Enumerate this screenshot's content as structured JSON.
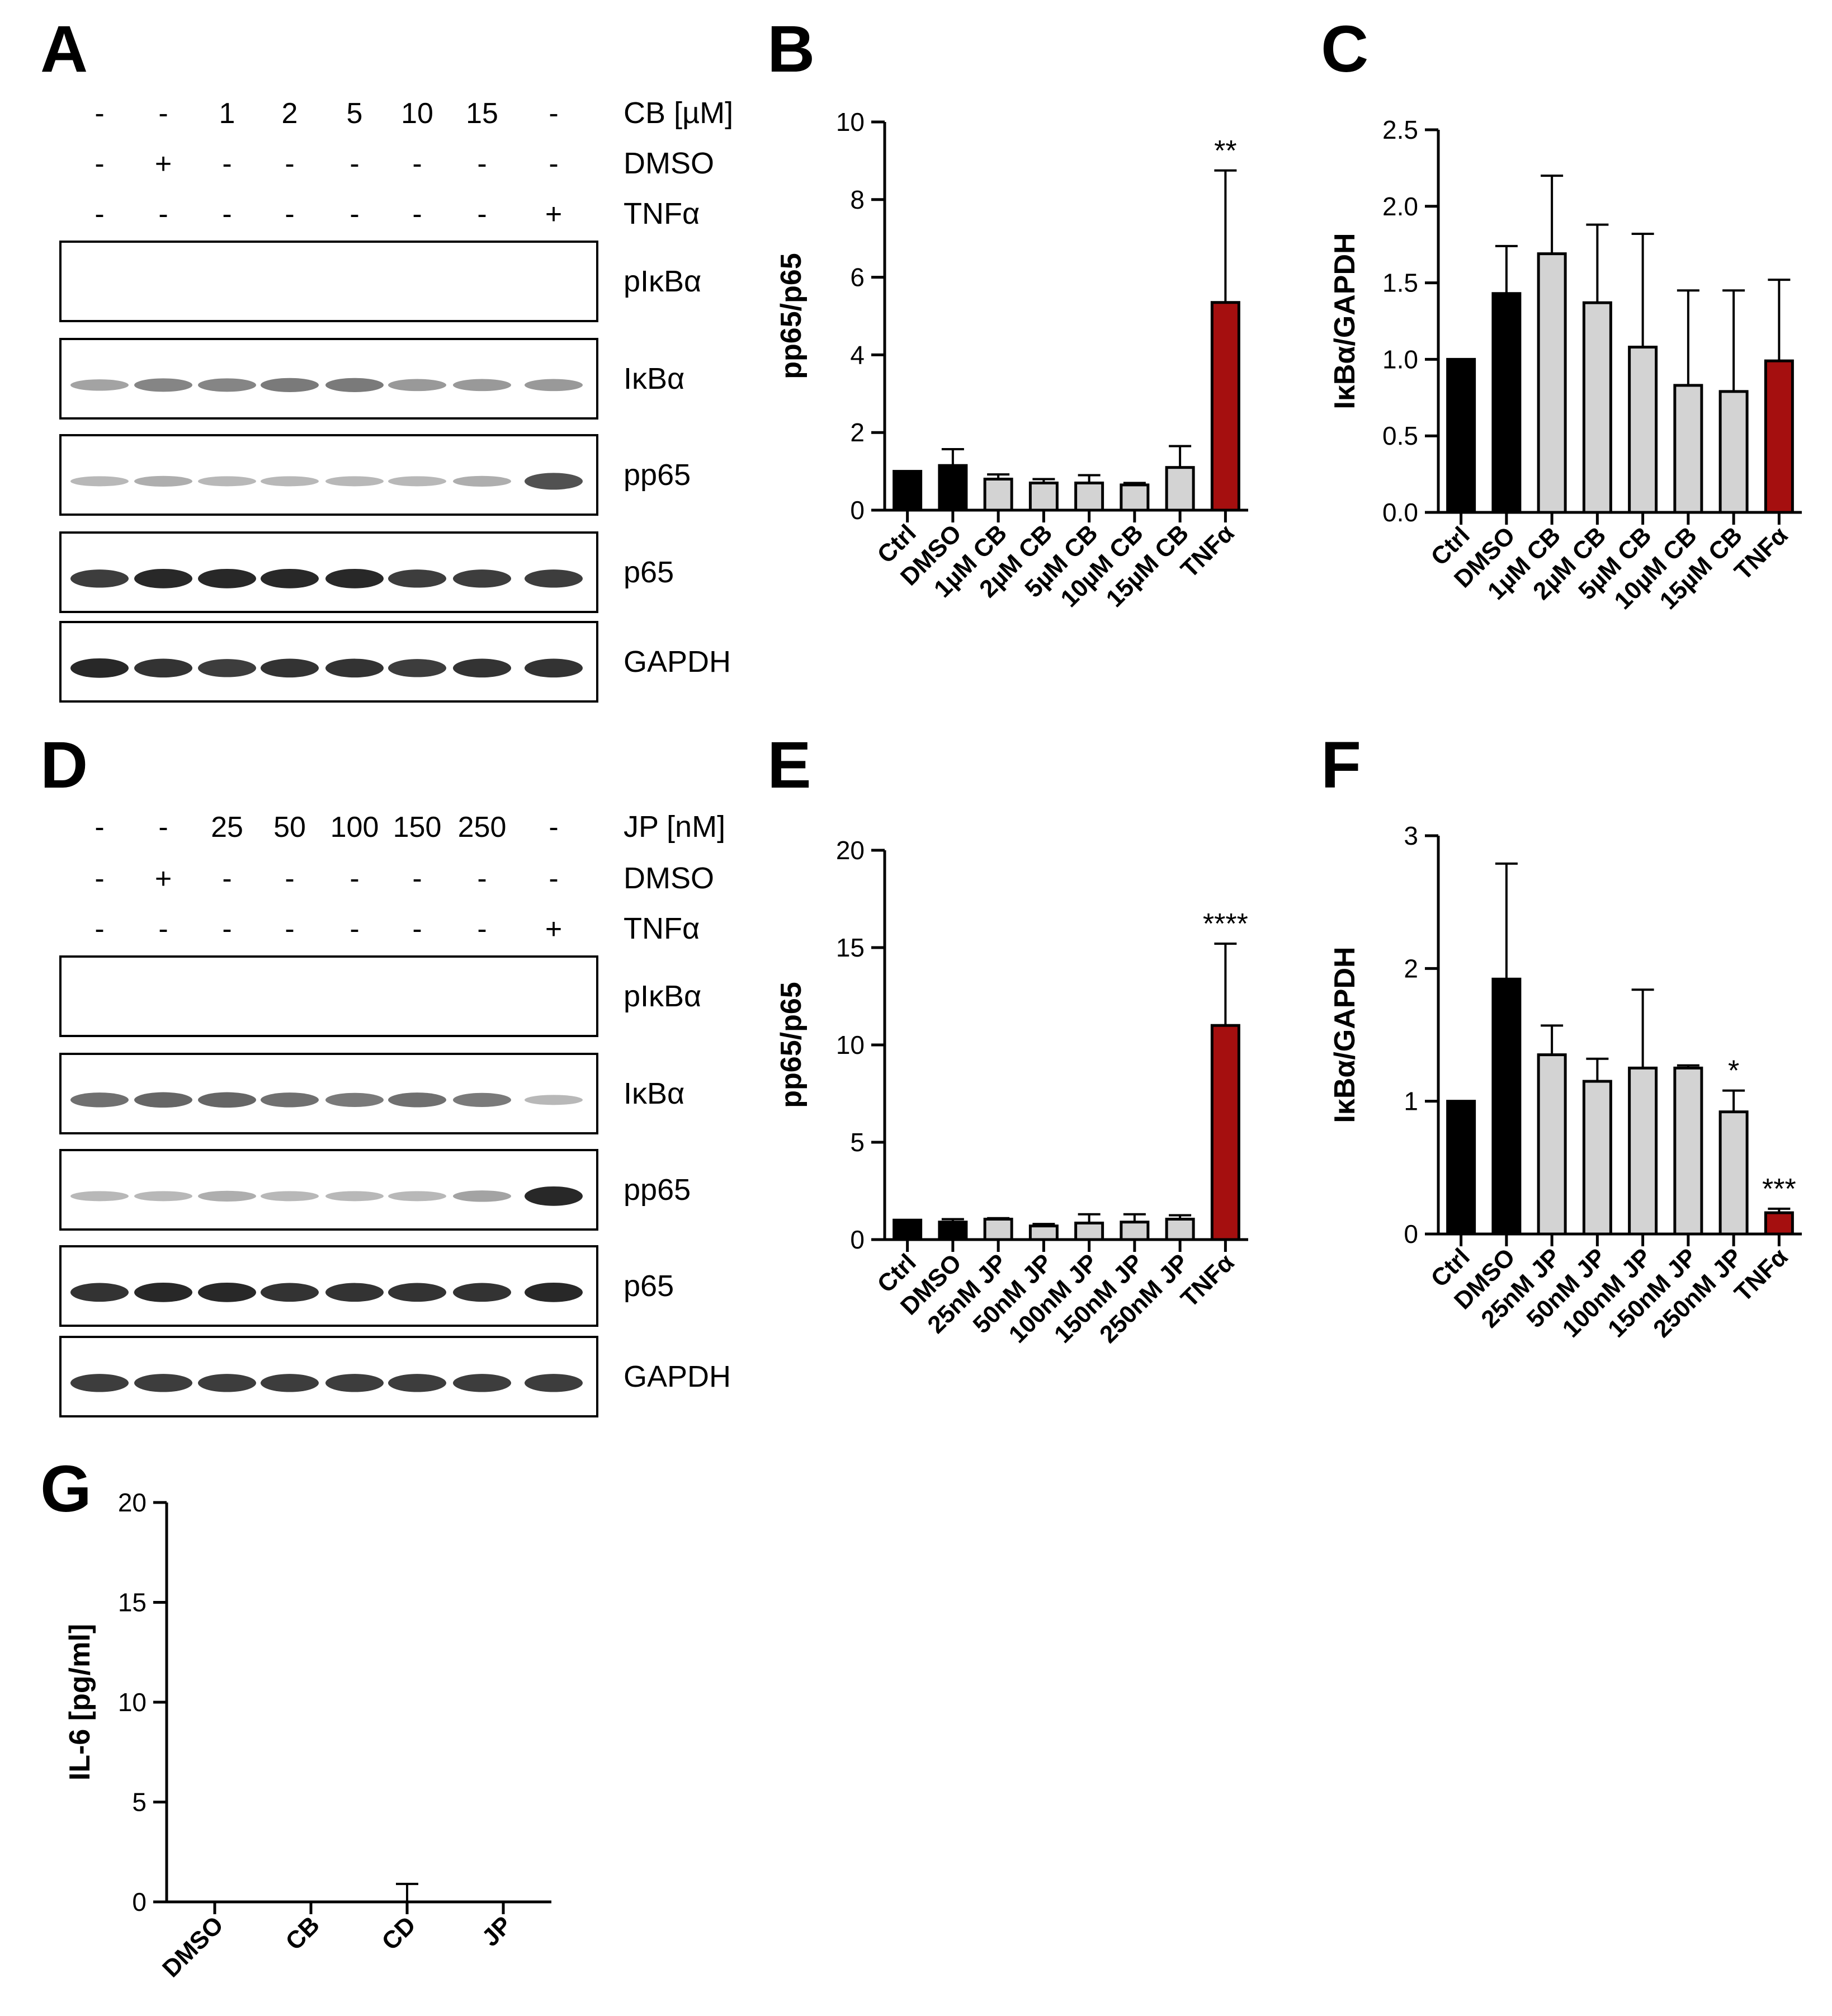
{
  "panel_letters": [
    "A",
    "B",
    "C",
    "D",
    "E",
    "F",
    "G"
  ],
  "colors": {
    "ctrl": "#000000",
    "treat": "#d3d3d3",
    "tnf": "#a50f0f",
    "band": "#1a1a1a",
    "box": "#000000"
  },
  "blots": [
    {
      "letter": "A",
      "conditions": [
        {
          "label": "CB [µM]",
          "marks": [
            "-",
            "-",
            "1",
            "2",
            "5",
            "10",
            "15",
            "-"
          ]
        },
        {
          "label": "DMSO",
          "marks": [
            "-",
            "+",
            "-",
            "-",
            "-",
            "-",
            "-",
            "-"
          ]
        },
        {
          "label": "TNFα",
          "marks": [
            "-",
            "-",
            "-",
            "-",
            "-",
            "-",
            "-",
            "+"
          ]
        }
      ],
      "strips": [
        {
          "label": "pIκBα",
          "intensity": [
            0,
            0,
            0,
            0,
            0,
            0,
            0,
            0
          ]
        },
        {
          "label": "IκBα",
          "intensity": [
            0.35,
            0.5,
            0.5,
            0.55,
            0.55,
            0.4,
            0.4,
            0.4
          ]
        },
        {
          "label": "pp65",
          "intensity": [
            0.25,
            0.3,
            0.25,
            0.25,
            0.25,
            0.25,
            0.3,
            0.75
          ]
        },
        {
          "label": "p65",
          "intensity": [
            0.85,
            0.95,
            0.95,
            0.95,
            0.95,
            0.85,
            0.85,
            0.85
          ]
        },
        {
          "label": "GAPDH",
          "intensity": [
            0.95,
            0.9,
            0.85,
            0.9,
            0.9,
            0.85,
            0.9,
            0.9
          ]
        }
      ]
    },
    {
      "letter": "D",
      "conditions": [
        {
          "label": "JP [nM]",
          "marks": [
            "-",
            "-",
            "25",
            "50",
            "100",
            "150",
            "250",
            "-"
          ]
        },
        {
          "label": "DMSO",
          "marks": [
            "-",
            "+",
            "-",
            "-",
            "-",
            "-",
            "-",
            "-"
          ]
        },
        {
          "label": "TNFα",
          "marks": [
            "-",
            "-",
            "-",
            "-",
            "-",
            "-",
            "-",
            "+"
          ]
        }
      ],
      "strips": [
        {
          "label": "pIκBα",
          "intensity": [
            0,
            0,
            0,
            0,
            0,
            0,
            0,
            0
          ]
        },
        {
          "label": "IκBα",
          "intensity": [
            0.6,
            0.65,
            0.65,
            0.6,
            0.55,
            0.6,
            0.55,
            0.25
          ]
        },
        {
          "label": "pp65",
          "intensity": [
            0.25,
            0.25,
            0.3,
            0.25,
            0.25,
            0.25,
            0.35,
            0.95
          ]
        },
        {
          "label": "p65",
          "intensity": [
            0.9,
            0.95,
            0.95,
            0.9,
            0.9,
            0.9,
            0.9,
            0.95
          ]
        },
        {
          "label": "GAPDH",
          "intensity": [
            0.85,
            0.85,
            0.85,
            0.85,
            0.85,
            0.85,
            0.85,
            0.85
          ]
        }
      ]
    }
  ],
  "chart_data": [
    {
      "panel": "B",
      "type": "bar",
      "ylabel": "pp65/p65",
      "ylim": [
        0,
        10
      ],
      "yticks": [
        0,
        2,
        4,
        6,
        8,
        10
      ],
      "tick_labels": [
        "0",
        "2",
        "4",
        "6",
        "8",
        "10"
      ],
      "categories": [
        "Ctrl",
        "DMSO",
        "1µM CB",
        "2µM CB",
        "5µM CB",
        "10µM CB",
        "15µM CB",
        "TNFα"
      ],
      "values": [
        1.0,
        1.15,
        0.8,
        0.7,
        0.7,
        0.65,
        1.1,
        5.35
      ],
      "errors": [
        0,
        0.42,
        0.12,
        0.1,
        0.2,
        0.05,
        0.55,
        3.4
      ],
      "fills": [
        "ctrl",
        "ctrl",
        "treat",
        "treat",
        "treat",
        "treat",
        "treat",
        "tnf"
      ],
      "significance": [
        "",
        "",
        "",
        "",
        "",
        "",
        "",
        "**"
      ]
    },
    {
      "panel": "C",
      "type": "bar",
      "ylabel": "IκBα/GAPDH",
      "ylim": [
        0,
        2.5
      ],
      "yticks": [
        0,
        0.5,
        1,
        1.5,
        2,
        2.5
      ],
      "tick_labels": [
        "0.0",
        "0.5",
        "1.0",
        "1.5",
        "2.0",
        "2.5"
      ],
      "categories": [
        "Ctrl",
        "DMSO",
        "1µM CB",
        "2µM CB",
        "5µM CB",
        "10µM CB",
        "15µM CB",
        "TNFα"
      ],
      "values": [
        1.0,
        1.43,
        1.69,
        1.37,
        1.08,
        0.83,
        0.79,
        0.99
      ],
      "errors": [
        0,
        0.31,
        0.51,
        0.51,
        0.74,
        0.62,
        0.66,
        0.53
      ],
      "fills": [
        "ctrl",
        "ctrl",
        "treat",
        "treat",
        "treat",
        "treat",
        "treat",
        "tnf"
      ],
      "significance": [
        "",
        "",
        "",
        "",
        "",
        "",
        "",
        ""
      ]
    },
    {
      "panel": "E",
      "type": "bar",
      "ylabel": "pp65/p65",
      "ylim": [
        0,
        20
      ],
      "yticks": [
        0,
        5,
        10,
        15,
        20
      ],
      "tick_labels": [
        "0",
        "5",
        "10",
        "15",
        "20"
      ],
      "categories": [
        "Ctrl",
        "DMSO",
        "25nM JP",
        "50nM JP",
        "100nM JP",
        "150nM JP",
        "250nM JP",
        "TNFα"
      ],
      "values": [
        1.0,
        0.9,
        1.05,
        0.7,
        0.85,
        0.9,
        1.05,
        11.0
      ],
      "errors": [
        0,
        0.15,
        0.05,
        0.1,
        0.45,
        0.4,
        0.2,
        4.2
      ],
      "fills": [
        "ctrl",
        "ctrl",
        "treat",
        "treat",
        "treat",
        "treat",
        "treat",
        "tnf"
      ],
      "significance": [
        "",
        "",
        "",
        "",
        "",
        "",
        "",
        "****"
      ]
    },
    {
      "panel": "F",
      "type": "bar",
      "ylabel": "IκBα/GAPDH",
      "ylim": [
        0,
        3
      ],
      "yticks": [
        0,
        1,
        2,
        3
      ],
      "tick_labels": [
        "0",
        "1",
        "2",
        "3"
      ],
      "categories": [
        "Ctrl",
        "DMSO",
        "25nM JP",
        "50nM JP",
        "100nM JP",
        "150nM JP",
        "250nM JP",
        "TNFα"
      ],
      "values": [
        1.0,
        1.92,
        1.35,
        1.15,
        1.25,
        1.25,
        0.92,
        0.16
      ],
      "errors": [
        0,
        0.87,
        0.22,
        0.17,
        0.59,
        0.02,
        0.16,
        0.03
      ],
      "fills": [
        "ctrl",
        "ctrl",
        "treat",
        "treat",
        "treat",
        "treat",
        "treat",
        "tnf"
      ],
      "significance": [
        "",
        "",
        "",
        "",
        "",
        "",
        "*",
        "***"
      ]
    },
    {
      "panel": "G",
      "type": "bar",
      "ylabel": "IL-6 [pg/ml]",
      "ylim": [
        0,
        20
      ],
      "yticks": [
        0,
        5,
        10,
        15,
        20
      ],
      "tick_labels": [
        "0",
        "5",
        "10",
        "15",
        "20"
      ],
      "categories": [
        "DMSO",
        "CB",
        "CD",
        "JP"
      ],
      "values": [
        0,
        0,
        0,
        0
      ],
      "errors": [
        0,
        0,
        0.9,
        0
      ],
      "fills": [
        "ctrl",
        "ctrl",
        "ctrl",
        "ctrl"
      ],
      "significance": [
        "",
        "",
        "",
        ""
      ]
    }
  ]
}
